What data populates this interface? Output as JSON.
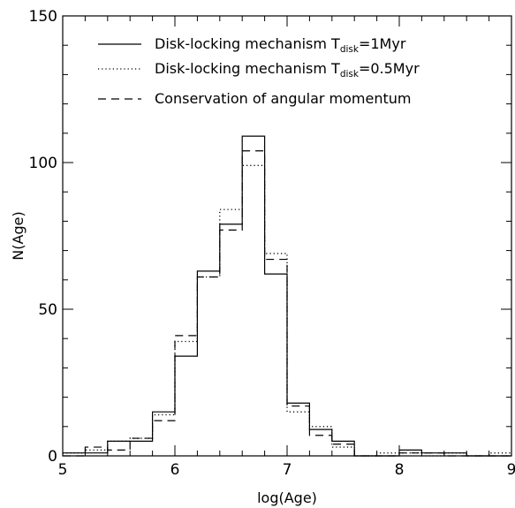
{
  "chart_data": {
    "type": "histogram",
    "xlabel": "log(Age)",
    "ylabel": "N(Age)",
    "xlim": [
      5,
      9
    ],
    "ylim": [
      0,
      150
    ],
    "x_ticks": [
      5,
      6,
      7,
      8,
      9
    ],
    "y_ticks": [
      0,
      50,
      100,
      150
    ],
    "bin_edges": [
      5.0,
      5.2,
      5.4,
      5.6,
      5.8,
      6.0,
      6.2,
      6.4,
      6.6,
      6.8,
      7.0,
      7.2,
      7.4,
      7.6,
      7.8,
      8.0,
      8.2,
      8.4,
      8.6,
      8.8,
      9.0
    ],
    "legend_position": "top",
    "grid": false,
    "series": [
      {
        "name_prefix": "Disk-locking mechanism T",
        "name_sub": "disk",
        "name_suffix": "=1Myr",
        "style": "solid",
        "values": [
          1,
          1,
          5,
          5,
          15,
          34,
          63,
          79,
          109,
          62,
          18,
          9,
          5,
          0,
          0,
          2,
          1,
          1,
          0,
          0
        ]
      },
      {
        "name_prefix": "Disk-locking mechanism T",
        "name_sub": "disk",
        "name_suffix": "=0.5Myr",
        "style": "dotted",
        "values": [
          1,
          2,
          5,
          6,
          14,
          39,
          61,
          84,
          99,
          69,
          15,
          10,
          3,
          0,
          1,
          1,
          0,
          1,
          0,
          1
        ]
      },
      {
        "name_prefix": "Conservation of angular momentum",
        "name_sub": "",
        "name_suffix": "",
        "style": "dashed",
        "values": [
          0,
          3,
          2,
          6,
          12,
          41,
          61,
          77,
          104,
          67,
          17,
          7,
          4,
          0,
          0,
          1,
          1,
          0,
          0,
          0
        ]
      }
    ]
  }
}
